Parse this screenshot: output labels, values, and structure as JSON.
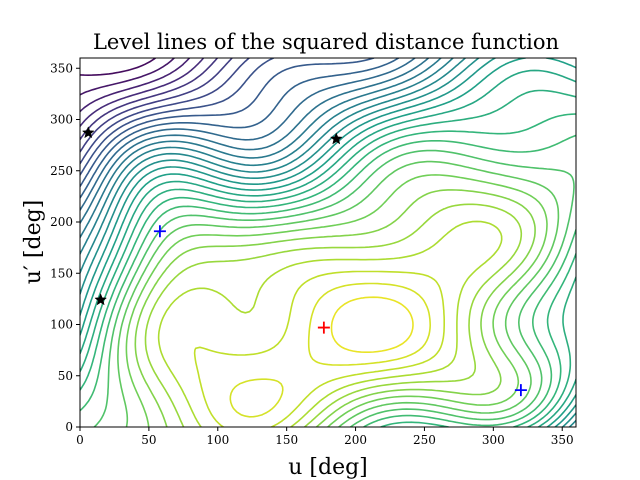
{
  "chart_data": {
    "type": "contour",
    "title": "Level lines of the squared distance function",
    "xlabel": "u [deg]",
    "ylabel": "u′ [deg]",
    "xlim": [
      0,
      360
    ],
    "ylim": [
      0,
      360
    ],
    "xticks": [
      0,
      50,
      100,
      150,
      200,
      250,
      300,
      350
    ],
    "yticks": [
      0,
      50,
      100,
      150,
      200,
      250,
      300,
      350
    ],
    "colormap": "viridis",
    "grid": false,
    "markers": [
      {
        "type": "plus",
        "color": "#ff0000",
        "x": 177,
        "y": 97
      },
      {
        "type": "plus",
        "color": "#0000ff",
        "x": 58,
        "y": 191
      },
      {
        "type": "plus",
        "color": "#0000ff",
        "x": 320,
        "y": 36
      },
      {
        "type": "star",
        "color": "#000000",
        "x": 6,
        "y": 287
      },
      {
        "type": "star",
        "color": "#000000",
        "x": 186,
        "y": 281
      },
      {
        "type": "star",
        "color": "#000000",
        "x": 15,
        "y": 124
      }
    ]
  }
}
